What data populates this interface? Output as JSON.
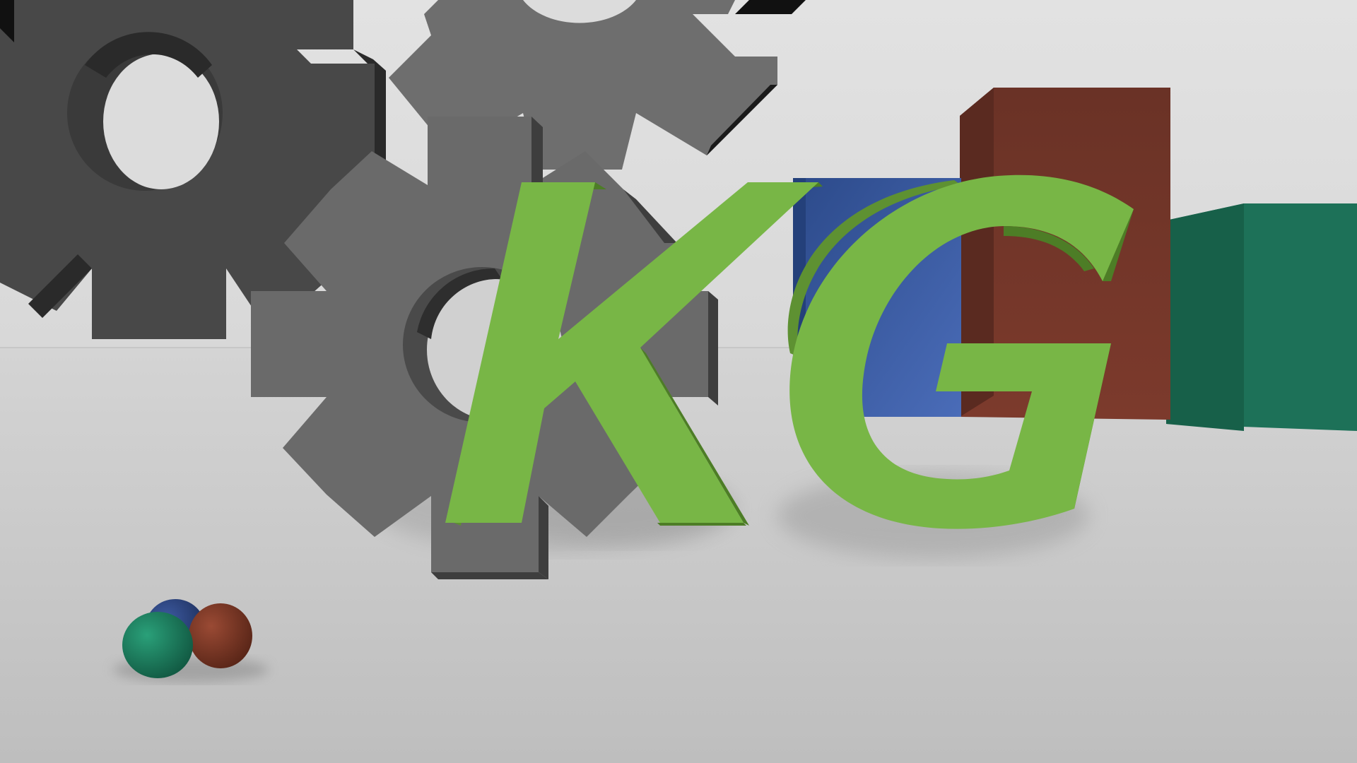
{
  "scene": {
    "description_type": "3d-render",
    "logo_text": [
      "K",
      "G"
    ],
    "colors": {
      "wall": "#dcdcdc",
      "floor": "#c6c6c6",
      "gear_light": "#6e6e6e",
      "gear_mid": "#5e5e5e",
      "gear_dark": "#484848",
      "gear_shadow": "#1c1c1c",
      "letter_face": "#78b646",
      "letter_side": "#4d7d26",
      "block_blue": "#35569a",
      "block_brown": "#6a3226",
      "block_green": "#1e7659",
      "ball_blue": "#2b4580",
      "ball_brown": "#7a3a28",
      "ball_green": "#1e8a66"
    },
    "objects": [
      "gear",
      "gear",
      "gear",
      "letter-k",
      "letter-g",
      "blue-block",
      "brown-block",
      "green-block",
      "blue-ball",
      "brown-ball",
      "green-ball"
    ]
  }
}
